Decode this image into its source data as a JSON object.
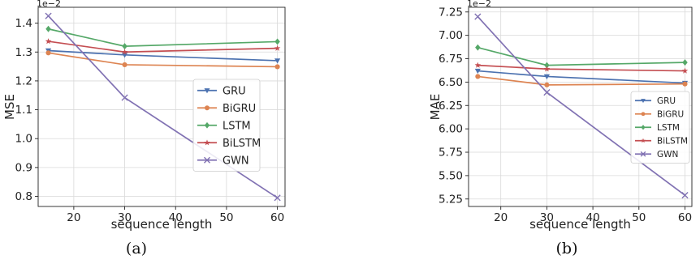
{
  "chart_data": [
    {
      "type": "line",
      "caption": "(a)",
      "xlabel": "sequence length",
      "ylabel": "MSE",
      "scale_label": "1e−2",
      "x": [
        15,
        30,
        60
      ],
      "xticks": [
        20,
        30,
        40,
        50,
        60
      ],
      "xlim": [
        13,
        61.5
      ],
      "ylim": [
        0.765,
        1.455
      ],
      "yticks": [
        0.8,
        0.9,
        1.0,
        1.1,
        1.2,
        1.3,
        1.4
      ],
      "ytick_labels": [
        "0.8",
        "0.9",
        "1.0",
        "1.1",
        "1.2",
        "1.3",
        "1.4"
      ],
      "grid": true,
      "legend_position": "center-right",
      "series": [
        {
          "name": "GRU",
          "color": "#4c72b0",
          "marker": "triangle-down",
          "values": [
            1.305,
            1.29,
            1.27
          ]
        },
        {
          "name": "BiGRU",
          "color": "#dd8452",
          "marker": "circle",
          "values": [
            1.297,
            1.256,
            1.249
          ]
        },
        {
          "name": "LSTM",
          "color": "#55a868",
          "marker": "diamond",
          "values": [
            1.38,
            1.32,
            1.336
          ]
        },
        {
          "name": "BiLSTM",
          "color": "#c44e52",
          "marker": "star",
          "values": [
            1.337,
            1.3,
            1.313
          ]
        },
        {
          "name": "GWN",
          "color": "#8172b3",
          "marker": "x",
          "values": [
            1.425,
            1.142,
            0.795
          ]
        }
      ]
    },
    {
      "type": "line",
      "caption": "(b)",
      "xlabel": "sequence length",
      "ylabel": "MAE",
      "scale_label": "1e−2",
      "x": [
        15,
        30,
        60
      ],
      "xticks": [
        20,
        30,
        40,
        50,
        60
      ],
      "xlim": [
        13,
        61.5
      ],
      "ylim": [
        5.17,
        7.3
      ],
      "yticks": [
        5.25,
        5.5,
        5.75,
        6.0,
        6.25,
        6.5,
        6.75,
        7.0,
        7.25
      ],
      "ytick_labels": [
        "5.25",
        "5.50",
        "5.75",
        "6.00",
        "6.25",
        "6.50",
        "6.75",
        "7.00",
        "7.25"
      ],
      "grid": true,
      "legend_position": "lower-right",
      "series": [
        {
          "name": "GRU",
          "color": "#4c72b0",
          "marker": "triangle-down",
          "values": [
            6.62,
            6.56,
            6.49
          ]
        },
        {
          "name": "BiGRU",
          "color": "#dd8452",
          "marker": "circle",
          "values": [
            6.56,
            6.47,
            6.48
          ]
        },
        {
          "name": "LSTM",
          "color": "#55a868",
          "marker": "diamond",
          "values": [
            6.87,
            6.68,
            6.71
          ]
        },
        {
          "name": "BiLSTM",
          "color": "#c44e52",
          "marker": "star",
          "values": [
            6.68,
            6.64,
            6.62
          ]
        },
        {
          "name": "GWN",
          "color": "#8172b3",
          "marker": "x",
          "values": [
            7.2,
            6.39,
            5.29
          ]
        }
      ]
    }
  ]
}
